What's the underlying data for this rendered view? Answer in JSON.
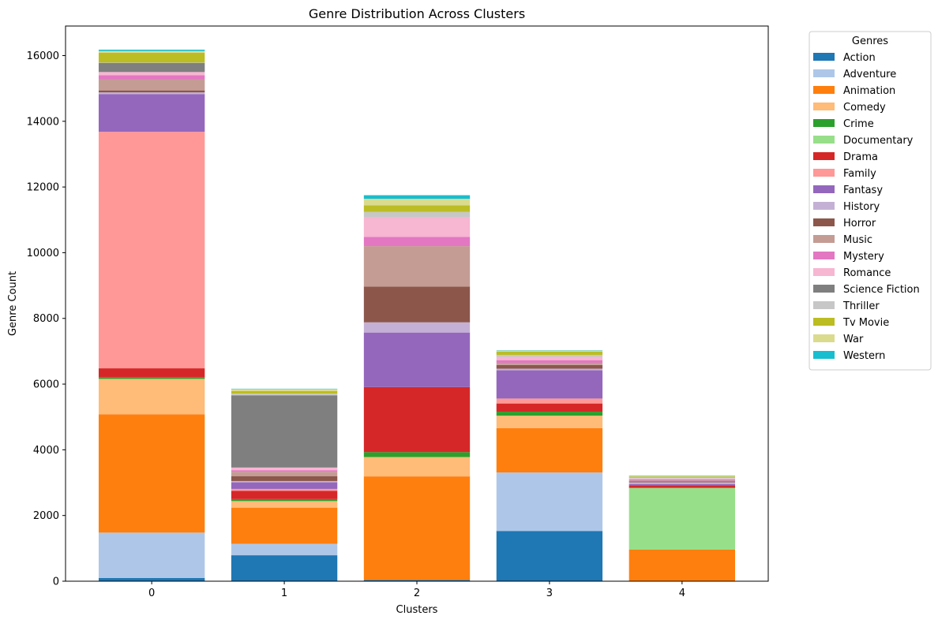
{
  "chart_data": {
    "type": "bar",
    "stacked": true,
    "title": "Genre Distribution Across Clusters",
    "xlabel": "Clusters",
    "ylabel": "Genre Count",
    "categories": [
      "0",
      "1",
      "2",
      "3",
      "4"
    ],
    "ylim": [
      0,
      16900
    ],
    "yticks": [
      0,
      2000,
      4000,
      6000,
      8000,
      10000,
      12000,
      14000,
      16000
    ],
    "grid": false,
    "legend": {
      "title": "Genres",
      "placement": "outside-top-right"
    },
    "series": [
      {
        "name": "Action",
        "color": "#1f77b4",
        "values": [
          100,
          790,
          40,
          1530,
          0
        ]
      },
      {
        "name": "Adventure",
        "color": "#aec7e8",
        "values": [
          1380,
          350,
          0,
          1780,
          0
        ]
      },
      {
        "name": "Animation",
        "color": "#ff7f0e",
        "values": [
          3600,
          1100,
          3150,
          1350,
          960
        ]
      },
      {
        "name": "Comedy",
        "color": "#ffbb78",
        "values": [
          1080,
          200,
          590,
          380,
          0
        ]
      },
      {
        "name": "Crime",
        "color": "#2ca02c",
        "values": [
          50,
          60,
          150,
          120,
          0
        ]
      },
      {
        "name": "Documentary",
        "color": "#98df8a",
        "values": [
          0,
          0,
          0,
          0,
          1880
        ]
      },
      {
        "name": "Drama",
        "color": "#d62728",
        "values": [
          270,
          250,
          1980,
          250,
          80
        ]
      },
      {
        "name": "Family",
        "color": "#ff9896",
        "values": [
          7200,
          60,
          0,
          150,
          0
        ]
      },
      {
        "name": "Fantasy",
        "color": "#9467bd",
        "values": [
          1150,
          200,
          1660,
          860,
          40
        ]
      },
      {
        "name": "History",
        "color": "#c5b0d5",
        "values": [
          50,
          40,
          310,
          50,
          50
        ]
      },
      {
        "name": "Horror",
        "color": "#8c564b",
        "values": [
          60,
          150,
          1090,
          110,
          30
        ]
      },
      {
        "name": "Music",
        "color": "#c49c94",
        "values": [
          340,
          130,
          1230,
          70,
          30
        ]
      },
      {
        "name": "Mystery",
        "color": "#e377c2",
        "values": [
          120,
          50,
          280,
          80,
          30
        ]
      },
      {
        "name": "Romance",
        "color": "#f7b6d2",
        "values": [
          100,
          80,
          600,
          100,
          30
        ]
      },
      {
        "name": "Science Fiction",
        "color": "#7f7f7f",
        "values": [
          280,
          2200,
          0,
          0,
          0
        ]
      },
      {
        "name": "Thriller",
        "color": "#c7c7c7",
        "values": [
          10,
          50,
          160,
          60,
          20
        ]
      },
      {
        "name": "Tv Movie",
        "color": "#bcbd22",
        "values": [
          300,
          80,
          200,
          100,
          30
        ]
      },
      {
        "name": "War",
        "color": "#dbdb8d",
        "values": [
          50,
          60,
          200,
          30,
          30
        ]
      },
      {
        "name": "Western",
        "color": "#17becf",
        "values": [
          40,
          10,
          110,
          10,
          10
        ]
      }
    ]
  }
}
